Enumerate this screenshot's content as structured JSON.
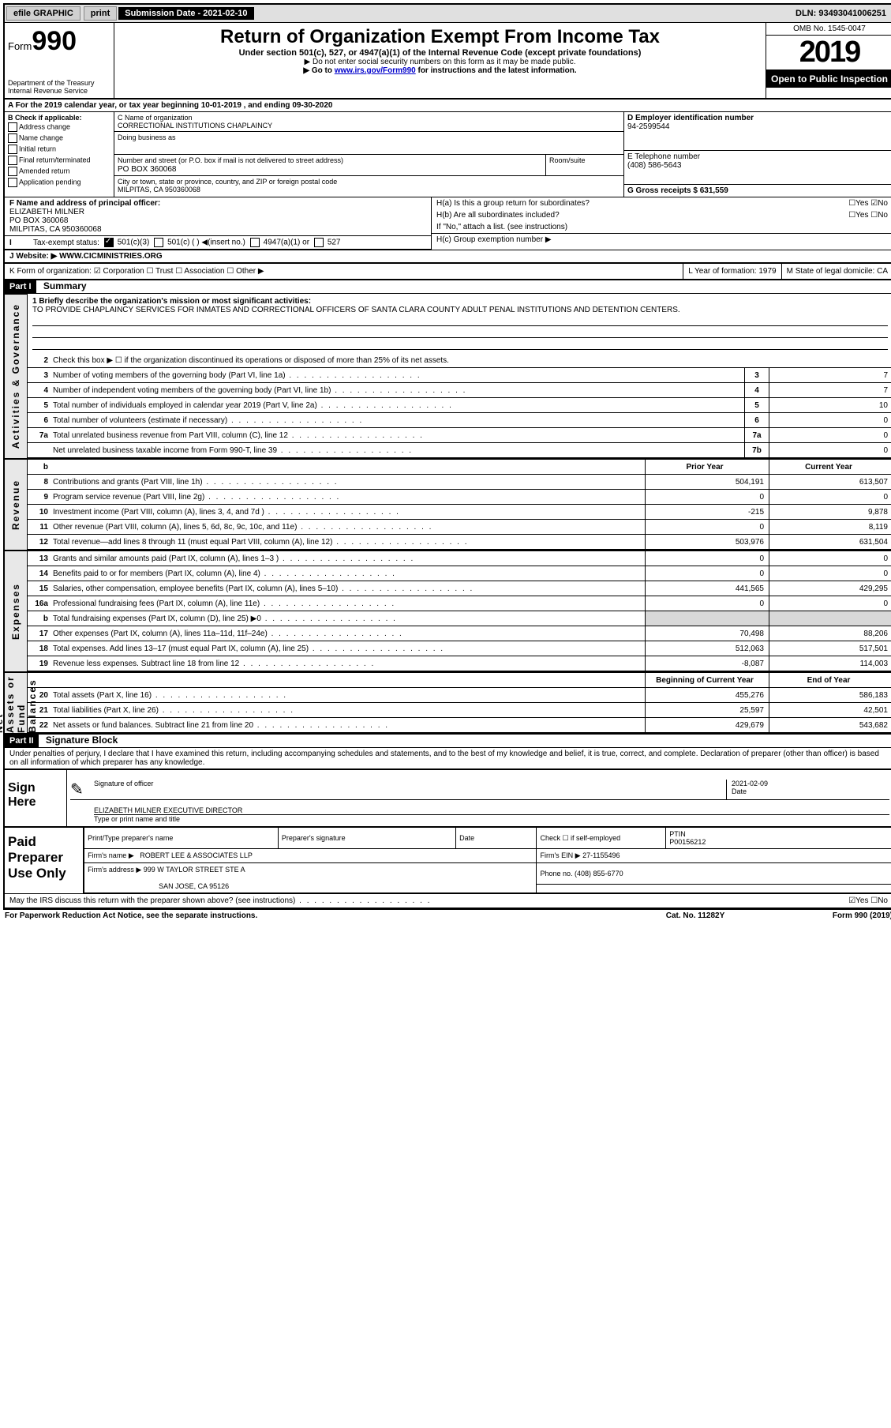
{
  "topbar": {
    "efile": "efile GRAPHIC",
    "print": "print",
    "subdate_label": "Submission Date - 2021-02-10",
    "dln": "DLN: 93493041006251"
  },
  "header": {
    "form_prefix": "Form",
    "form_number": "990",
    "dept": "Department of the Treasury",
    "irs": "Internal Revenue Service",
    "title": "Return of Organization Exempt From Income Tax",
    "subtitle": "Under section 501(c), 527, or 4947(a)(1) of the Internal Revenue Code (except private foundations)",
    "note1": "▶ Do not enter social security numbers on this form as it may be made public.",
    "note2_pre": "▶ Go to ",
    "note2_link": "www.irs.gov/Form990",
    "note2_post": " for instructions and the latest information.",
    "omb": "OMB No. 1545-0047",
    "year": "2019",
    "open": "Open to Public Inspection"
  },
  "row_a": "A For the 2019 calendar year, or tax year beginning 10-01-2019    , and ending 09-30-2020",
  "col_b": {
    "label": "B Check if applicable:",
    "opts": [
      "Address change",
      "Name change",
      "Initial return",
      "Final return/terminated",
      "Amended return",
      "Application pending"
    ]
  },
  "col_c": {
    "name_label": "C Name of organization",
    "name": "CORRECTIONAL INSTITUTIONS CHAPLAINCY",
    "dba_label": "Doing business as",
    "addr_label": "Number and street (or P.O. box if mail is not delivered to street address)",
    "room_label": "Room/suite",
    "addr": "PO BOX 360068",
    "city_label": "City or town, state or province, country, and ZIP or foreign postal code",
    "city": "MILPITAS, CA  950360068"
  },
  "col_d": {
    "ein_label": "D Employer identification number",
    "ein": "94-2599544",
    "tel_label": "E Telephone number",
    "tel": "(408) 586-5643",
    "gross_label": "G Gross receipts $ 631,559"
  },
  "fgh": {
    "f_label": "F  Name and address of principal officer:",
    "f_name": "ELIZABETH MILNER",
    "f_addr1": "PO BOX 360068",
    "f_addr2": "MILPITAS, CA  950360068",
    "ha": "H(a)  Is this a group return for subordinates?",
    "ha_yn": "☐Yes  ☑No",
    "hb": "H(b)  Are all subordinates included?",
    "hb_yn": "☐Yes  ☐No",
    "hb_note": "If \"No,\" attach a list. (see instructions)",
    "hc": "H(c)  Group exemption number ▶"
  },
  "tes": {
    "label": "Tax-exempt status:",
    "opt1": "501(c)(3)",
    "opt2": "501(c) (  ) ◀(insert no.)",
    "opt3": "4947(a)(1) or",
    "opt4": "527"
  },
  "website": {
    "label": "J   Website: ▶",
    "value": "WWW.CICMINISTRIES.ORG"
  },
  "klm": {
    "k": "K Form of organization:  ☑ Corporation  ☐ Trust  ☐ Association  ☐ Other ▶",
    "l": "L Year of formation: 1979",
    "m": "M State of legal domicile: CA"
  },
  "part1": {
    "bar": "Part I",
    "title": "Summary",
    "q1": "1  Briefly describe the organization's mission or most significant activities:",
    "mission": "TO PROVIDE CHAPLAINCY SERVICES FOR INMATES AND CORRECTIONAL OFFICERS OF SANTA CLARA COUNTY ADULT PENAL INSTITUTIONS AND DETENTION CENTERS.",
    "q2": "Check this box ▶ ☐  if the organization discontinued its operations or disposed of more than 25% of its net assets."
  },
  "sections": {
    "gov": "Activities & Governance",
    "rev": "Revenue",
    "exp": "Expenses",
    "net": "Net Assets or Fund Balances"
  },
  "lines_gov": [
    {
      "no": "3",
      "desc": "Number of voting members of the governing body (Part VI, line 1a)",
      "box": "3",
      "v": "7"
    },
    {
      "no": "4",
      "desc": "Number of independent voting members of the governing body (Part VI, line 1b)",
      "box": "4",
      "v": "7"
    },
    {
      "no": "5",
      "desc": "Total number of individuals employed in calendar year 2019 (Part V, line 2a)",
      "box": "5",
      "v": "10"
    },
    {
      "no": "6",
      "desc": "Total number of volunteers (estimate if necessary)",
      "box": "6",
      "v": "0"
    },
    {
      "no": "7a",
      "desc": "Total unrelated business revenue from Part VIII, column (C), line 12",
      "box": "7a",
      "v": "0"
    },
    {
      "no": "",
      "desc": "Net unrelated business taxable income from Form 990-T, line 39",
      "box": "7b",
      "v": "0"
    }
  ],
  "col_hdr": {
    "py": "Prior Year",
    "cy": "Current Year"
  },
  "lines_rev": [
    {
      "no": "8",
      "desc": "Contributions and grants (Part VIII, line 1h)",
      "py": "504,191",
      "cy": "613,507"
    },
    {
      "no": "9",
      "desc": "Program service revenue (Part VIII, line 2g)",
      "py": "0",
      "cy": "0"
    },
    {
      "no": "10",
      "desc": "Investment income (Part VIII, column (A), lines 3, 4, and 7d )",
      "py": "-215",
      "cy": "9,878"
    },
    {
      "no": "11",
      "desc": "Other revenue (Part VIII, column (A), lines 5, 6d, 8c, 9c, 10c, and 11e)",
      "py": "0",
      "cy": "8,119"
    },
    {
      "no": "12",
      "desc": "Total revenue—add lines 8 through 11 (must equal Part VIII, column (A), line 12)",
      "py": "503,976",
      "cy": "631,504"
    }
  ],
  "lines_exp": [
    {
      "no": "13",
      "desc": "Grants and similar amounts paid (Part IX, column (A), lines 1–3 )",
      "py": "0",
      "cy": "0"
    },
    {
      "no": "14",
      "desc": "Benefits paid to or for members (Part IX, column (A), line 4)",
      "py": "0",
      "cy": "0"
    },
    {
      "no": "15",
      "desc": "Salaries, other compensation, employee benefits (Part IX, column (A), lines 5–10)",
      "py": "441,565",
      "cy": "429,295"
    },
    {
      "no": "16a",
      "desc": "Professional fundraising fees (Part IX, column (A), line 11e)",
      "py": "0",
      "cy": "0"
    },
    {
      "no": "b",
      "desc": "Total fundraising expenses (Part IX, column (D), line 25) ▶0",
      "py": "",
      "cy": "",
      "shade": true
    },
    {
      "no": "17",
      "desc": "Other expenses (Part IX, column (A), lines 11a–11d, 11f–24e)",
      "py": "70,498",
      "cy": "88,206"
    },
    {
      "no": "18",
      "desc": "Total expenses. Add lines 13–17 (must equal Part IX, column (A), line 25)",
      "py": "512,063",
      "cy": "517,501"
    },
    {
      "no": "19",
      "desc": "Revenue less expenses. Subtract line 18 from line 12",
      "py": "-8,087",
      "cy": "114,003"
    }
  ],
  "col_hdr2": {
    "py": "Beginning of Current Year",
    "cy": "End of Year"
  },
  "lines_net": [
    {
      "no": "20",
      "desc": "Total assets (Part X, line 16)",
      "py": "455,276",
      "cy": "586,183"
    },
    {
      "no": "21",
      "desc": "Total liabilities (Part X, line 26)",
      "py": "25,597",
      "cy": "42,501"
    },
    {
      "no": "22",
      "desc": "Net assets or fund balances. Subtract line 21 from line 20",
      "py": "429,679",
      "cy": "543,682"
    }
  ],
  "part2": {
    "bar": "Part II",
    "title": "Signature Block",
    "decl": "Under penalties of perjury, I declare that I have examined this return, including accompanying schedules and statements, and to the best of my knowledge and belief, it is true, correct, and complete. Declaration of preparer (other than officer) is based on all information of which preparer has any knowledge."
  },
  "sign": {
    "label": "Sign Here",
    "sig_caption": "Signature of officer",
    "date": "2021-02-09",
    "date_caption": "Date",
    "name": "ELIZABETH MILNER  EXECUTIVE DIRECTOR",
    "name_caption": "Type or print name and title"
  },
  "paid": {
    "label": "Paid Preparer Use Only",
    "h1": "Print/Type preparer's name",
    "h2": "Preparer's signature",
    "h3": "Date",
    "h4": "Check ☐ if self-employed",
    "h5_label": "PTIN",
    "h5": "P00156212",
    "firm_label": "Firm's name    ▶",
    "firm": "ROBERT LEE & ASSOCIATES LLP",
    "ein_label": "Firm's EIN ▶",
    "ein": "27-1155496",
    "addr_label": "Firm's address ▶",
    "addr1": "999 W TAYLOR STREET STE A",
    "addr2": "SAN JOSE, CA  95126",
    "phone_label": "Phone no.",
    "phone": "(408) 855-6770"
  },
  "discuss": {
    "q": "May the IRS discuss this return with the preparer shown above? (see instructions)",
    "yn": "☑Yes  ☐No"
  },
  "footer": {
    "left": "For Paperwork Reduction Act Notice, see the separate instructions.",
    "mid": "Cat. No. 11282Y",
    "right": "Form 990 (2019)"
  }
}
